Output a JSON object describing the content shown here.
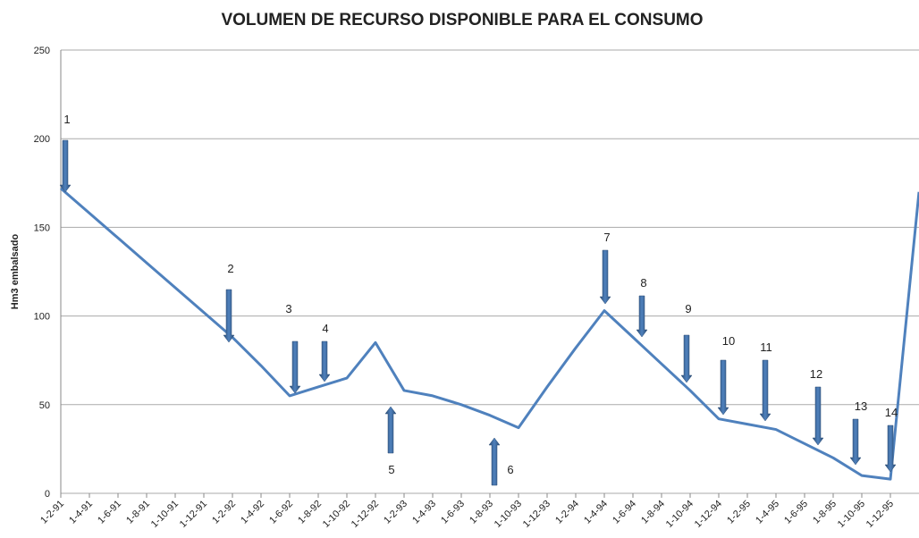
{
  "chart_data": {
    "type": "line",
    "title": "VOLUMEN DE RECURSO DISPONIBLE PARA EL CONSUMO",
    "y_label": "Hm3 embalsado",
    "categories": [
      "1-2-91",
      "1-4-91",
      "1-6-91",
      "1-8-91",
      "1-10-91",
      "1-12-91",
      "1-2-92",
      "1-4-92",
      "1-6-92",
      "1-8-92",
      "1-10-92",
      "1-12-92",
      "1-2-93",
      "1-4-93",
      "1-6-93",
      "1-8-93",
      "1-10-93",
      "1-12-93",
      "1-2-94",
      "1-4-94",
      "1-6-94",
      "1-8-94",
      "1-10-94",
      "1-12-94",
      "1-2-95",
      "1-4-95",
      "1-6-95",
      "1-8-95",
      "1-10-95",
      "1-12-95",
      null
    ],
    "series": [
      {
        "name": "Hm3 embalsado",
        "color": "#4f81bd",
        "values": [
          172,
          158,
          144,
          130,
          116,
          102,
          88,
          72,
          55,
          60,
          65,
          85,
          58,
          55,
          50,
          44,
          37,
          60,
          82,
          103,
          88,
          73,
          58,
          42,
          39,
          36,
          28,
          20,
          10,
          8,
          170
        ]
      }
    ],
    "ylim": [
      0,
      250
    ],
    "yticks": [
      0,
      50,
      100,
      150,
      200,
      250
    ],
    "grid": true,
    "annotations": [
      "1",
      "2",
      "3",
      "4",
      "5",
      "6",
      "7",
      "8",
      "9",
      "10",
      "11",
      "12",
      "13",
      "14"
    ]
  }
}
